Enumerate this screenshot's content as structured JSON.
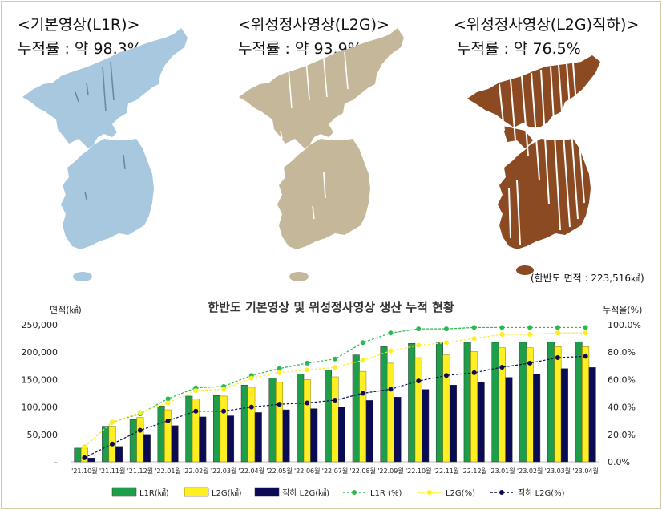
{
  "maps": [
    {
      "title": "<기본영상(L1R)>",
      "coverage": "누적률 : 약 98.3%",
      "color": "#a8c8df",
      "stripe": "#6b88a3"
    },
    {
      "title": "<위성정사영상(L2G)>",
      "coverage": "누적률 : 약 93.9%",
      "color": "#c5b79a",
      "stripe": "#ffffff"
    },
    {
      "title": "<위성정사영상(L2G)직하)>",
      "coverage": "누적률 : 약 76.5%",
      "color": "#8b4a22",
      "stripe": "#ffffff"
    }
  ],
  "area_note": "(한반도 면적 : 223,516㎢)",
  "chart_data": {
    "type": "bar",
    "title": "한반도 기본영상 및 위성정사영상 생산 누적 현황",
    "ylabel": "면적(㎢)",
    "y2label": "누적율(%)",
    "ylim": [
      0,
      250000
    ],
    "y2lim": [
      0,
      100
    ],
    "yticks": [
      "–",
      "50,000",
      "100,000",
      "150,000",
      "200,000",
      "250,000"
    ],
    "y2ticks": [
      "0.0%",
      "20.0%",
      "40.0%",
      "60.0%",
      "80.0%",
      "100.0%"
    ],
    "categories": [
      "'21.10월",
      "'21.11월",
      "'21.12월",
      "'22.01월",
      "'22.02월",
      "'22.03월",
      "'22.04월",
      "'22.05월",
      "'22.06월",
      "'22.07월",
      "'22.08월",
      "'22.09월",
      "'22.10월",
      "'22.11월",
      "'22.12월",
      "'23.01월",
      "'23.02월",
      "'23.03월",
      "'23.04월"
    ],
    "series": [
      {
        "name": "L1R(㎢)",
        "kind": "bar",
        "axis": "left",
        "color": "#1e9e4a",
        "values": [
          25000,
          65000,
          77000,
          102000,
          120000,
          121000,
          140000,
          153000,
          160000,
          167000,
          195000,
          210000,
          216000,
          217000,
          218000,
          218000,
          218000,
          219000,
          219000
        ]
      },
      {
        "name": "L2G(㎢)",
        "kind": "bar",
        "axis": "left",
        "color": "#ffee22",
        "values": [
          25000,
          65000,
          81000,
          95000,
          115000,
          120000,
          136000,
          145000,
          150000,
          155000,
          165000,
          180000,
          190000,
          195000,
          201000,
          208000,
          208000,
          210000,
          210000
        ]
      },
      {
        "name": "직하 L2G(㎢)",
        "kind": "bar",
        "axis": "left",
        "color": "#0a0a55",
        "values": [
          7000,
          28000,
          50000,
          66000,
          82000,
          84000,
          90000,
          95000,
          97000,
          100000,
          112000,
          118000,
          132000,
          140000,
          145000,
          154000,
          160000,
          170000,
          172000
        ]
      },
      {
        "name": "L1R (%)",
        "kind": "line",
        "axis": "right",
        "color": "#2bb84f",
        "values": [
          11,
          29,
          35,
          46,
          54,
          55,
          63,
          68,
          72,
          75,
          87,
          94,
          97,
          97,
          98,
          98,
          98,
          98,
          98
        ]
      },
      {
        "name": "L2G(%)",
        "kind": "line",
        "axis": "right",
        "color": "#ffee22",
        "values": [
          11,
          29,
          36,
          43,
          52,
          53,
          61,
          65,
          67,
          69,
          74,
          81,
          85,
          87,
          90,
          93,
          93,
          94,
          94
        ]
      },
      {
        "name": "직하 L2G(%)",
        "kind": "line",
        "axis": "right",
        "color": "#0a0a55",
        "values": [
          3,
          13,
          23,
          30,
          37,
          37,
          40,
          42,
          43,
          45,
          50,
          53,
          59,
          63,
          65,
          69,
          72,
          76,
          77
        ]
      }
    ],
    "legend_position": "bottom",
    "grid": false
  }
}
